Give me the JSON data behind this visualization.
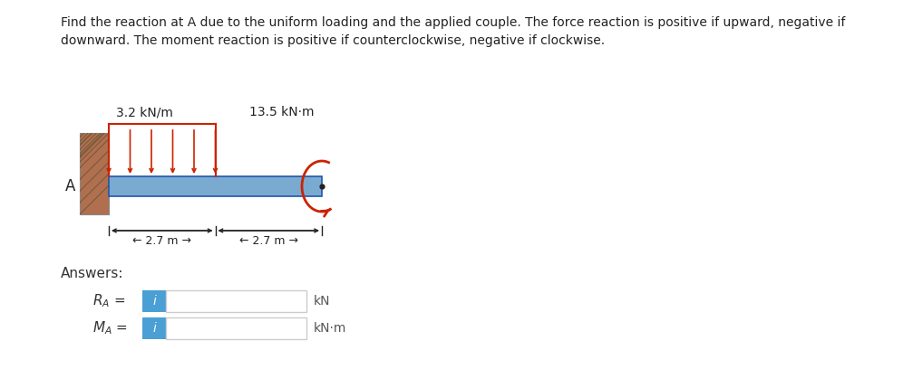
{
  "title_text": "Find the reaction at A due to the uniform loading and the applied couple. The force reaction is positive if upward, negative if\ndownward. The moment reaction is positive if counterclockwise, negative if clockwise.",
  "title_fontsize": 10.0,
  "background_color": "#ffffff",
  "beam_color": "#7aaad0",
  "load_color": "#cc2200",
  "wall_color": "#b07050",
  "load_label": "3.2 kN/m",
  "moment_label": "13.5 kN·m",
  "A_label": "A",
  "answers_label": "Answers:",
  "kN_label": "kN",
  "kNm_label": "kN·m",
  "blue_i_color": "#4a9fd5",
  "input_border_color": "#cccccc"
}
